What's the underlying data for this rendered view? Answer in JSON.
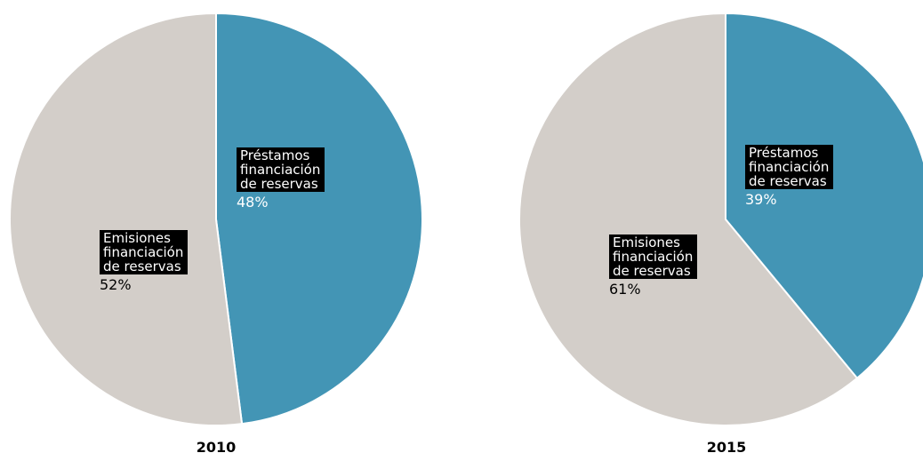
{
  "chart_data": [
    {
      "type": "pie",
      "title": "2010",
      "slices": [
        {
          "label": "Préstamos\nfinanciación\nde reservas",
          "value": 48,
          "value_label": "48%",
          "color": "#4395B5"
        },
        {
          "label": "Emisiones\nfinanciación\nde reservas",
          "value": 52,
          "value_label": "52%",
          "color": "#D3CEC9"
        }
      ],
      "legend": "none"
    },
    {
      "type": "pie",
      "title": "2015",
      "slices": [
        {
          "label": "Préstamos\nfinanciación\nde reservas",
          "value": 39,
          "value_label": "39%",
          "color": "#4395B5"
        },
        {
          "label": "Emisiones\nfinanciación\nde reservas",
          "value": 61,
          "value_label": "61%",
          "color": "#D3CEC9"
        }
      ],
      "legend": "none"
    }
  ]
}
